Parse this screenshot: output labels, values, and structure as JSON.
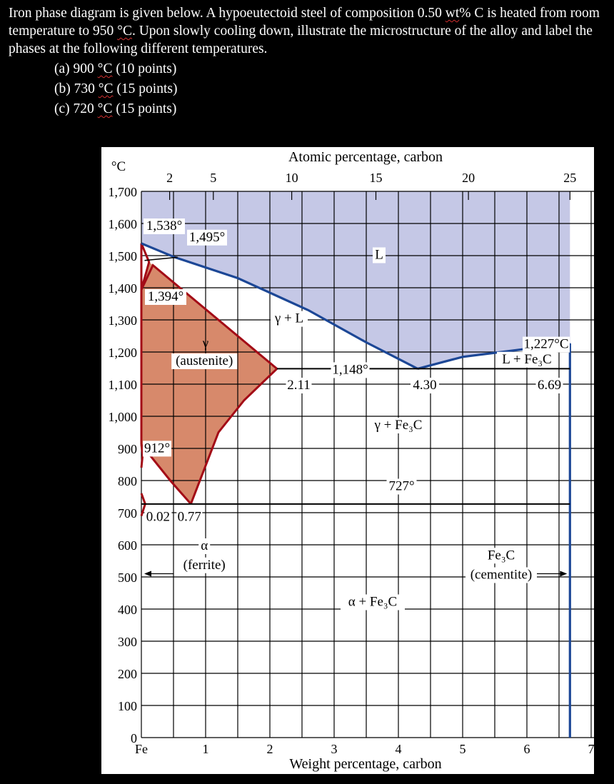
{
  "question": {
    "text_line1_pre": "Iron phase diagram is given below. A hypoeutectoid steel of composition 0.50 ",
    "text_line1_wt": "wt",
    "text_line1_post": "% C is heated",
    "text_line2_pre": "from room temperature to 950 ",
    "text_line2_unit": "°C",
    "text_line2_post": ". Upon slowly cooling down, illustrate the microstructure of the",
    "text_line3": "alloy and label the phases at the following different temperatures.",
    "parts": [
      {
        "pre": "(a) 900 ",
        "unit": "°C",
        "post": " (10 points)"
      },
      {
        "pre": "(b) 730 ",
        "unit": "°C",
        "post": " (15 points)"
      },
      {
        "pre": "(c) 720 ",
        "unit": "°C",
        "post": " (15 points)"
      }
    ]
  },
  "diagram": {
    "top_axis_title": "Atomic percentage, carbon",
    "bottom_axis_title": "Weight percentage, carbon",
    "y_unit": "°C",
    "x_range_wt": [
      0,
      7
    ],
    "y_range_c": [
      0,
      1700
    ],
    "left_ticks": [
      "1,700",
      "1,600",
      "1,500",
      "1,400",
      "1,300",
      "1,200",
      "1,100",
      "1,000",
      "900",
      "800",
      "700",
      "600",
      "500",
      "400",
      "300",
      "200",
      "100",
      "0"
    ],
    "bottom_ticks": [
      "Fe",
      "1",
      "2",
      "3",
      "4",
      "5",
      "6",
      "7"
    ],
    "top_ticks": [
      {
        "label": "2",
        "wt": 0.44
      },
      {
        "label": "5",
        "wt": 1.12
      },
      {
        "label": "10",
        "wt": 2.34
      },
      {
        "label": "15",
        "wt": 3.65
      },
      {
        "label": "20",
        "wt": 5.09
      },
      {
        "label": "25",
        "wt": 6.67
      }
    ],
    "points": {
      "fe_melting_c": 1538,
      "peritectic_c": 1495,
      "gamma_delta_c": 1394,
      "alpha_gamma_c": 912,
      "eutectic_c": 1148,
      "eutectoid_c": 727,
      "cementite_liquidus_c": 1227,
      "max_solubility_gamma_wt": 2.11,
      "eutectic_wt": 4.3,
      "cementite_wt": 6.69,
      "alpha_max_wt": 0.02,
      "eutectoid_wt": 0.77
    },
    "labels": {
      "t1538": "1,538°",
      "t1495": "1,495°",
      "t1394": "1,394°",
      "t912": "912°",
      "t1148": "1,148°",
      "t727": "727°",
      "t1227": "1,227°C",
      "c211": "2.11",
      "c430": "4.30",
      "c669": "6.69",
      "c002": "0.02",
      "c077": "0.77",
      "liquid": "L",
      "gamma_plus_l": "γ + L",
      "gamma_symbol": "γ",
      "austenite": "(austenite)",
      "gamma_plus_fe3c": "γ + Fe₃C",
      "l_plus_fe3c": "L + Fe₃C",
      "alpha_symbol": "α",
      "ferrite": "(ferrite)",
      "alpha_plus_fe3c": "α + Fe₃C",
      "fe3c": "Fe₃C",
      "cementite": "(cementite)"
    },
    "colors": {
      "liquid_fill": "#c5c8e6",
      "austenite_fill": "#d7896b",
      "austenite_edge": "#a30b16",
      "liquidus_line": "#1c4796",
      "grid": "#000000",
      "background": "#ffffff"
    }
  }
}
